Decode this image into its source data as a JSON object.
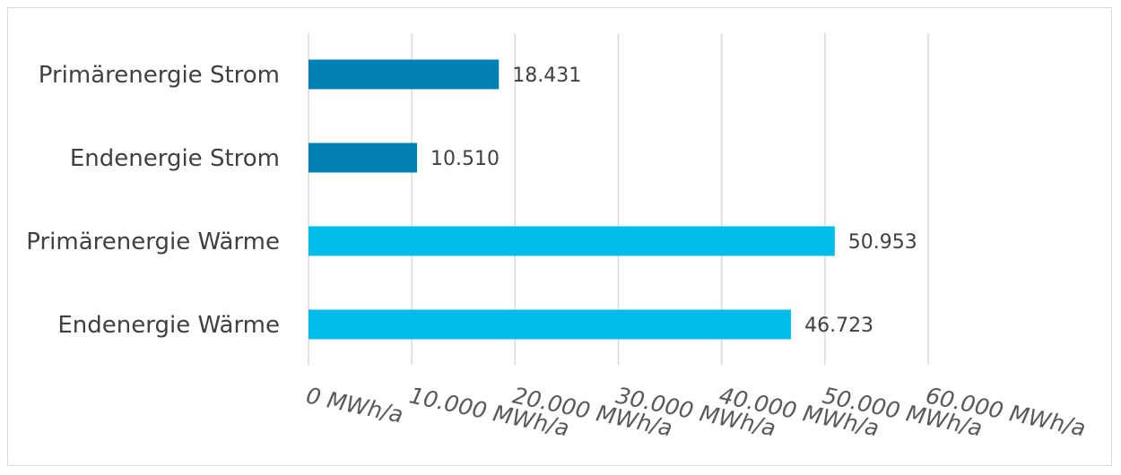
{
  "chart_data": {
    "type": "bar",
    "orientation": "horizontal",
    "title": "",
    "xlabel": "",
    "ylabel": "",
    "categories": [
      "Primärenergie Strom",
      "Endenergie Strom",
      "Primärenergie Wärme",
      "Endenergie Wärme"
    ],
    "values": [
      18431,
      10510,
      50953,
      46723
    ],
    "value_labels": [
      "18.431",
      "10.510",
      "50.953",
      "46.723"
    ],
    "bar_colors": [
      "#0080b4",
      "#0080b4",
      "#00bceb",
      "#00bceb"
    ],
    "xlim": [
      0,
      60000
    ],
    "x_ticks": [
      0,
      10000,
      20000,
      30000,
      40000,
      50000,
      60000
    ],
    "x_tick_labels": [
      "0 MWh/a",
      "10.000 MWh/a",
      "20.000 MWh/a",
      "30.000 MWh/a",
      "40.000 MWh/a",
      "50.000 MWh/a",
      "60.000 MWh/a"
    ],
    "grid": true,
    "legend": "none"
  }
}
